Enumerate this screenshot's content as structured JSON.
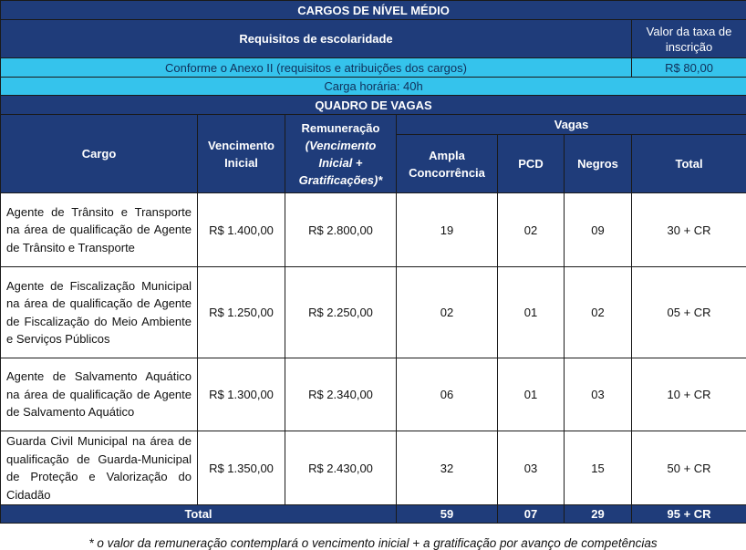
{
  "header": {
    "title": "CARGOS DE NÍVEL MÉDIO",
    "req_label": "Requisitos de escolaridade",
    "taxa_label": "Valor da taxa de inscrição",
    "req_value": "Conforme o Anexo II (requisitos e atribuições dos cargos)",
    "taxa_value": "R$ 80,00",
    "carga": "Carga horária: 40h",
    "vagas_title": "QUADRO DE VAGAS"
  },
  "columns": {
    "cargo": "Cargo",
    "vencimento": "Vencimento Inicial",
    "remuneracao": "Remuneração",
    "remuneracao_sub": "(Vencimento Inicial + Gratificações)*",
    "vagas": "Vagas",
    "ampla": "Ampla Concorrência",
    "pcd": "PCD",
    "negros": "Negros",
    "total": "Total"
  },
  "rows": [
    {
      "cargo": "Agente de Trânsito e Transporte na área de qualificação de Agente de Trânsito e Transporte",
      "vencimento": "R$ 1.400,00",
      "remuneracao": "R$ 2.800,00",
      "ampla": "19",
      "pcd": "02",
      "negros": "09",
      "total": "30 + CR"
    },
    {
      "cargo": "Agente de Fiscalização Municipal na área de qualificação de Agente de Fiscalização do Meio Ambiente e Serviços Públicos",
      "vencimento": "R$ 1.250,00",
      "remuneracao": "R$ 2.250,00",
      "ampla": "02",
      "pcd": "01",
      "negros": "02",
      "total": "05 + CR"
    },
    {
      "cargo": "Agente de Salvamento Aquático na área de qualificação de Agente de Salvamento Aquático",
      "vencimento": "R$ 1.300,00",
      "remuneracao": "R$ 2.340,00",
      "ampla": "06",
      "pcd": "01",
      "negros": "03",
      "total": "10 + CR"
    },
    {
      "cargo": "Guarda Civil Municipal na área de qualificação de Guarda-Municipal de Proteção e Valorização do Cidadão",
      "vencimento": "R$ 1.350,00",
      "remuneracao": "R$ 2.430,00",
      "ampla": "32",
      "pcd": "03",
      "negros": "15",
      "total": "50 + CR"
    }
  ],
  "totals": {
    "label": "Total",
    "ampla": "59",
    "pcd": "07",
    "negros": "29",
    "total": "95 + CR"
  },
  "footnote": "* o valor da remuneração contemplará o vencimento inicial + a gratificação por avanço de competências",
  "colors": {
    "header_dark": "#1f3c7a",
    "header_light": "#35c3ec"
  }
}
